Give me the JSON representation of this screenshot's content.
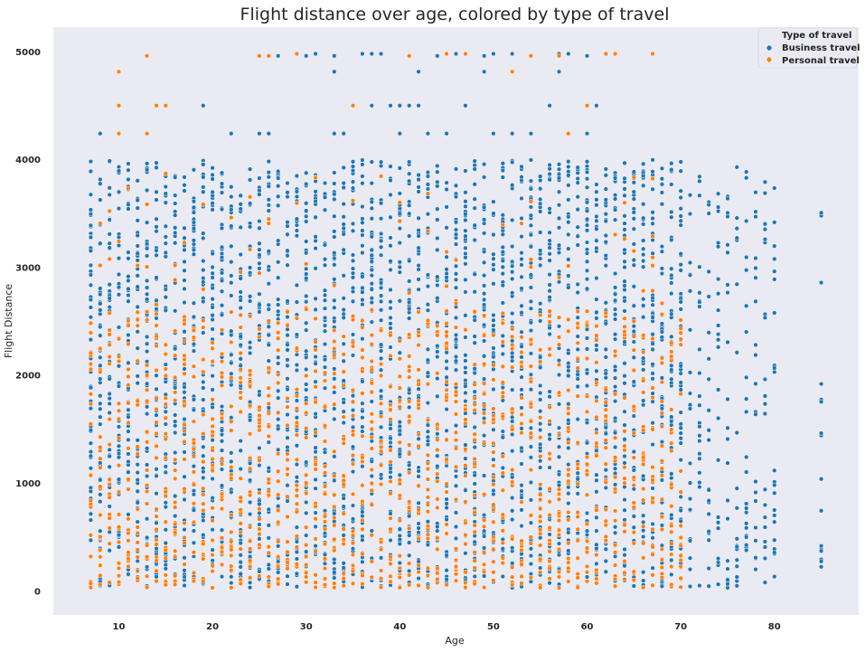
{
  "chart_data": {
    "type": "scatter",
    "title": "Flight distance over age, colored by type of travel",
    "xlabel": "Age",
    "ylabel": "Flight Distance",
    "xlim": [
      3,
      89
    ],
    "ylim": [
      -220,
      5230
    ],
    "xticks": [
      10,
      20,
      30,
      40,
      50,
      60,
      70,
      80
    ],
    "yticks": [
      0,
      1000,
      2000,
      3000,
      4000,
      5000
    ],
    "grid": false,
    "background": "#eaeaf2",
    "legend": {
      "title": "Type of travel",
      "placement": "top-right"
    },
    "series": [
      {
        "name": "Business travel",
        "color": "#1f77b4",
        "age_range": [
          7,
          85
        ],
        "distance_range": [
          31,
          4983
        ],
        "outliers": [
          [
            8,
            4243
          ],
          [
            19,
            4502
          ],
          [
            22,
            4243
          ],
          [
            25,
            4243
          ],
          [
            26,
            4243
          ],
          [
            27,
            4963
          ],
          [
            30,
            4963
          ],
          [
            31,
            4983
          ],
          [
            33,
            4817
          ],
          [
            33,
            4963
          ],
          [
            33,
            4243
          ],
          [
            34,
            4243
          ],
          [
            36,
            4983
          ],
          [
            37,
            4502
          ],
          [
            37,
            4983
          ],
          [
            38,
            4983
          ],
          [
            39,
            4502
          ],
          [
            40,
            4502
          ],
          [
            40,
            4243
          ],
          [
            41,
            4502
          ],
          [
            42,
            4817
          ],
          [
            42,
            4502
          ],
          [
            43,
            4243
          ],
          [
            44,
            4963
          ],
          [
            45,
            4243
          ],
          [
            46,
            4983
          ],
          [
            47,
            4502
          ],
          [
            49,
            4817
          ],
          [
            49,
            4963
          ],
          [
            50,
            4983
          ],
          [
            50,
            4243
          ],
          [
            52,
            4983
          ],
          [
            52,
            4243
          ],
          [
            54,
            4243
          ],
          [
            56,
            4502
          ],
          [
            57,
            4817
          ],
          [
            57,
            4983
          ],
          [
            58,
            4983
          ],
          [
            60,
            4963
          ],
          [
            60,
            4243
          ],
          [
            60,
            4502
          ],
          [
            61,
            4502
          ],
          [
            62,
            4983
          ]
        ]
      },
      {
        "name": "Personal travel",
        "color": "#ff7f0e",
        "age_range": [
          7,
          70
        ],
        "distance_range": [
          31,
          4983
        ],
        "outliers": [
          [
            10,
            4817
          ],
          [
            10,
            4502
          ],
          [
            10,
            4243
          ],
          [
            13,
            4963
          ],
          [
            13,
            4243
          ],
          [
            14,
            4502
          ],
          [
            15,
            4502
          ],
          [
            25,
            4963
          ],
          [
            26,
            4963
          ],
          [
            29,
            4983
          ],
          [
            35,
            4502
          ],
          [
            41,
            4963
          ],
          [
            45,
            4983
          ],
          [
            47,
            4983
          ],
          [
            52,
            4817
          ],
          [
            54,
            4963
          ],
          [
            57,
            4963
          ],
          [
            58,
            4243
          ],
          [
            60,
            4502
          ],
          [
            62,
            4983
          ],
          [
            63,
            4983
          ],
          [
            67,
            4983
          ]
        ]
      }
    ]
  }
}
